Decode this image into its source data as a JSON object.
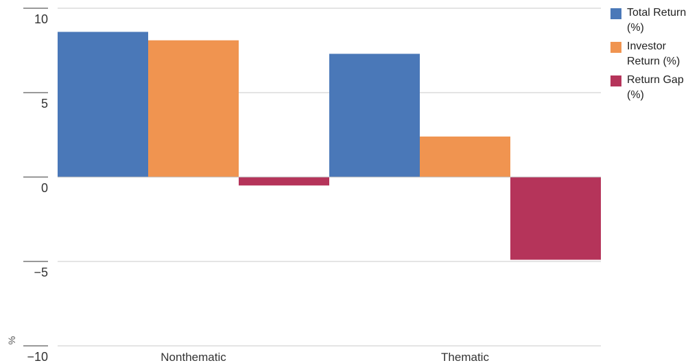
{
  "chart_data": {
    "type": "bar",
    "categories": [
      "Nonthematic",
      "Thematic"
    ],
    "series": [
      {
        "name": "Total Return (%)",
        "color": "#4a78b8",
        "values": [
          8.6,
          7.3
        ]
      },
      {
        "name": "Investor Return (%)",
        "color": "#f09450",
        "values": [
          8.1,
          2.4
        ]
      },
      {
        "name": "Return Gap (%)",
        "color": "#b5345a",
        "values": [
          -0.5,
          -4.9
        ]
      }
    ],
    "ylim": [
      -10,
      10
    ],
    "yticks": [
      10,
      5,
      0,
      -5,
      -10
    ],
    "ytick_labels": [
      "10",
      "5",
      "0",
      "−5",
      "−10"
    ],
    "ylabel": "%",
    "xlabel": "",
    "title": "",
    "grid": true,
    "legend_position": "right",
    "legend_labels": [
      "Total Return (%)",
      "Investor Return (%)",
      "Return Gap (%)"
    ]
  }
}
